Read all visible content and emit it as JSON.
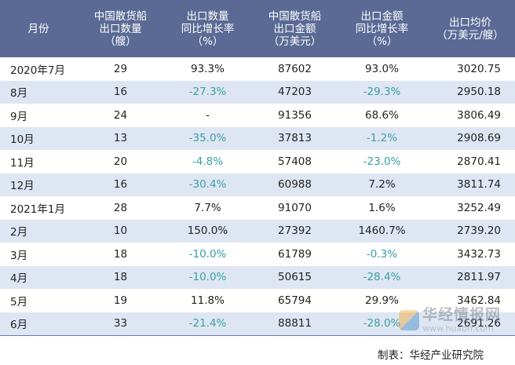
{
  "chart_data": {
    "type": "table",
    "columns": [
      [
        "月份"
      ],
      [
        "中国散货船",
        "出口数量",
        "（艘）"
      ],
      [
        "出口数量",
        "同比增长率",
        "（%）"
      ],
      [
        "中国散货船",
        "出口金额",
        "（万美元）"
      ],
      [
        "出口金额",
        "同比增长率",
        "（%）"
      ],
      [
        "出口均价",
        "（万美元/艘）"
      ]
    ],
    "rows": [
      [
        "2020年7月",
        "29",
        "93.3%",
        "87602",
        "93.0%",
        "3020.75"
      ],
      [
        "8月",
        "16",
        "-27.3%",
        "47203",
        "-29.3%",
        "2950.18"
      ],
      [
        "9月",
        "24",
        "-",
        "91356",
        "68.6%",
        "3806.49"
      ],
      [
        "10月",
        "13",
        "-35.0%",
        "37813",
        "-1.2%",
        "2908.69"
      ],
      [
        "11月",
        "20",
        "-4.8%",
        "57408",
        "-23.0%",
        "2870.41"
      ],
      [
        "12月",
        "16",
        "-30.4%",
        "60988",
        "7.2%",
        "3811.74"
      ],
      [
        "2021年1月",
        "28",
        "7.7%",
        "91070",
        "1.6%",
        "3252.49"
      ],
      [
        "2月",
        "10",
        "150.0%",
        "27392",
        "1460.7%",
        "2739.20"
      ],
      [
        "3月",
        "18",
        "-10.0%",
        "61789",
        "-0.3%",
        "3432.73"
      ],
      [
        "4月",
        "18",
        "-10.0%",
        "50615",
        "-28.4%",
        "2811.97"
      ],
      [
        "5月",
        "19",
        "11.8%",
        "65794",
        "29.9%",
        "3462.84"
      ],
      [
        "6月",
        "33",
        "-21.4%",
        "88811",
        "-28.0%",
        "2691.26"
      ]
    ],
    "negative_color": "#3aa0a4",
    "header_color": "#5a6a94",
    "stripe_color": "#dfe6f3"
  },
  "source": "制表：华经产业研究院",
  "watermark": {
    "name": "华经情报网",
    "url": "www.huaon.com"
  }
}
